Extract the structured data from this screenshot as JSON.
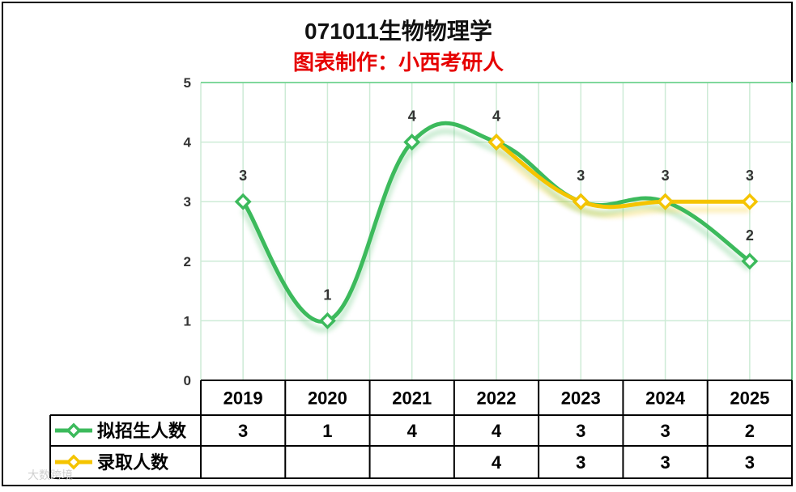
{
  "chart_data": {
    "type": "line",
    "title": "071011生物物理学",
    "subtitle": "图表制作：小西考研人",
    "categories": [
      "2019",
      "2020",
      "2021",
      "2022",
      "2023",
      "2024",
      "2025"
    ],
    "ylim": [
      0,
      5
    ],
    "yticks": [
      "0",
      "1",
      "2",
      "3",
      "4",
      "5"
    ],
    "grid": true,
    "series": [
      {
        "name": "拟招生人数",
        "color": "#3cba5c",
        "values": [
          3,
          1,
          4,
          4,
          3,
          3,
          2
        ]
      },
      {
        "name": "录取人数",
        "color": "#f5c400",
        "values": [
          null,
          null,
          null,
          4,
          3,
          3,
          3
        ]
      }
    ]
  },
  "watermark": "大数跨境"
}
